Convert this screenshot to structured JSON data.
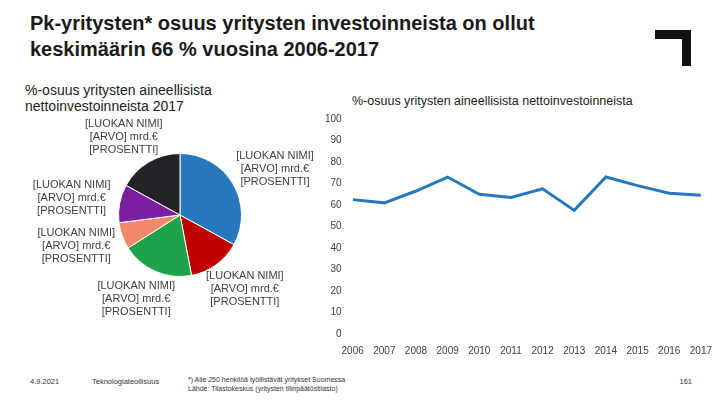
{
  "slide": {
    "title": "Pk-yritysten* osuus yritysten investoinneista on ollut keskimäärin 66 % vuosina 2006-2017",
    "date": "4.9.2021",
    "organization": "Teknologiateollisuus",
    "footnotes": [
      "*) Alle 250 henkilöä työllistävät yritykset Suomessa",
      "Lähde: Tilastokeskus (yritysten tilinpäätöstilasto)"
    ],
    "page": "161"
  },
  "chart_data": [
    {
      "type": "pie",
      "title": "%-osuus yritysten aineellisista nettoinvestoinneista 2017",
      "categories": [
        "[LUOKAN NIMI] [ARVO] mrd.€ [PROSENTTI]",
        "[LUOKAN NIMI] [ARVO] mrd.€ [PROSENTTI]",
        "[LUOKAN NIMI] [ARVO] mrd.€ [PROSENTTI]",
        "[LUOKAN NIMI] [ARVO] mrd.€ [PROSENTTI]",
        "[LUOKAN NIMI] [ARVO] mrd.€ [PROSENTTI]",
        "[LUOKAN NIMI] [ARVO] mrd.€ [PROSENTTI]"
      ],
      "values": [
        33,
        14,
        19,
        7,
        10,
        17
      ],
      "colors": [
        "#2878be",
        "#c00000",
        "#1fa34a",
        "#f4886a",
        "#7b1fa2",
        "#222328"
      ]
    },
    {
      "type": "line",
      "title": "%-osuus yritysten aineellisista nettoinvestoinneista",
      "categories": [
        "2006",
        "2007",
        "2008",
        "2009",
        "2010",
        "2011",
        "2012",
        "2013",
        "2014",
        "2015",
        "2016",
        "2017"
      ],
      "values": [
        62.5,
        61,
        66.5,
        73,
        65,
        63.5,
        67.5,
        57.5,
        73,
        69,
        65.5,
        64.5
      ],
      "color": "#2878be",
      "marker": "none",
      "line_style": "solid",
      "ylim": [
        0,
        100
      ],
      "yticks": [
        0,
        10,
        20,
        30,
        40,
        50,
        60,
        70,
        80,
        90,
        100
      ],
      "grid": false
    }
  ]
}
